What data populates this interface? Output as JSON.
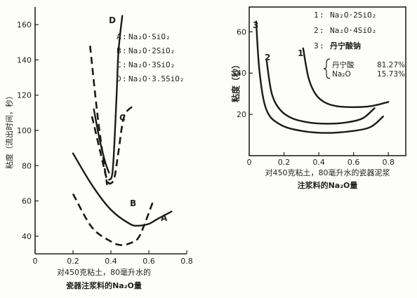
{
  "chart_data": [
    {
      "type": "line",
      "title": "",
      "xlabel_line1": "对450克粘土，80毫升水的",
      "xlabel_line2": "瓷器注浆料的Na₂O量",
      "ylabel": "粘度（流出时间，秒）",
      "xlim": [
        0,
        0.8
      ],
      "ylim": [
        30,
        170
      ],
      "xticks": [
        0,
        0.2,
        0.4,
        0.6,
        0.8
      ],
      "xtick_labels": [
        "0",
        "0.2",
        "0.4",
        "0.6",
        "0.8"
      ],
      "yticks": [
        40,
        60,
        80,
        100,
        120,
        140,
        160
      ],
      "ytick_labels": [
        "40",
        "60",
        "80",
        "100",
        "120",
        "140",
        "160"
      ],
      "legend": [
        {
          "key": "A",
          "text": "Na₂O·SiO₂"
        },
        {
          "key": "B",
          "text": "Na₂O·2SiO₂"
        },
        {
          "key": "C",
          "text": "Na₂O·3SiO₂"
        },
        {
          "key": "D",
          "text": "Na₂O·3.5SiO₂"
        }
      ],
      "series": [
        {
          "name": "A",
          "style": "solid",
          "x": [
            0.2,
            0.3,
            0.4,
            0.5,
            0.55,
            0.6,
            0.65,
            0.72
          ],
          "y": [
            87,
            69,
            55,
            47,
            46,
            47,
            50,
            54
          ]
        },
        {
          "name": "B",
          "style": "dashed",
          "x": [
            0.2,
            0.3,
            0.4,
            0.45,
            0.5,
            0.55,
            0.62
          ],
          "y": [
            64,
            45,
            37,
            35,
            36,
            40,
            59
          ]
        },
        {
          "name": "C",
          "style": "dashed",
          "x": [
            0.3,
            0.35,
            0.38,
            0.4,
            0.42,
            0.44,
            0.47,
            0.52
          ],
          "y": [
            108,
            85,
            72,
            70,
            74,
            88,
            108,
            114
          ]
        },
        {
          "name": "C",
          "style": "solid",
          "x": [
            0.31,
            0.34,
            0.37,
            0.39
          ],
          "y": [
            112,
            95,
            82,
            76
          ]
        },
        {
          "name": "D",
          "style": "dashed",
          "x": [
            0.29,
            0.33,
            0.36,
            0.38
          ],
          "y": [
            148,
            108,
            84,
            69
          ]
        },
        {
          "name": "D",
          "style": "solid",
          "x": [
            0.39,
            0.41,
            0.43,
            0.44,
            0.46
          ],
          "y": [
            72,
            78,
            120,
            145,
            165
          ]
        }
      ]
    },
    {
      "type": "line",
      "title": "",
      "xlabel_line1": "对450克粘土，80毫升水的瓷器泥浆",
      "xlabel_line2": "注浆料的Na₂O量",
      "ylabel": "粘度（秒）",
      "xlim": [
        0,
        0.9
      ],
      "ylim": [
        0,
        72
      ],
      "xticks": [
        0,
        0.2,
        0.4,
        0.6,
        0.8
      ],
      "xtick_labels": [
        "0",
        "0.2",
        "0.4",
        "0.6",
        "0.8"
      ],
      "yticks": [
        20,
        40,
        60
      ],
      "ytick_labels": [
        "20",
        "40",
        "60"
      ],
      "legend": [
        {
          "key": "1",
          "text": "Na₂O·2SiO₂"
        },
        {
          "key": "2",
          "text": "Na₂O·4SiO₂"
        },
        {
          "key": "3",
          "text": "丹宁酸钠"
        }
      ],
      "composition": [
        {
          "name": "丹宁酸",
          "value": "81.27%"
        },
        {
          "name": "Na₂O",
          "value": "15.73%"
        }
      ],
      "series": [
        {
          "name": "1",
          "x": [
            0.31,
            0.34,
            0.38,
            0.43,
            0.5,
            0.6,
            0.7,
            0.8
          ],
          "y": [
            52,
            38,
            30,
            26,
            24,
            23.5,
            24,
            26
          ]
        },
        {
          "name": "2",
          "x": [
            0.1,
            0.13,
            0.18,
            0.25,
            0.35,
            0.45,
            0.55,
            0.65,
            0.72
          ],
          "y": [
            46,
            30,
            22,
            18,
            16,
            15.5,
            16,
            18,
            23
          ]
        },
        {
          "name": "3",
          "x": [
            0.04,
            0.06,
            0.1,
            0.18,
            0.3,
            0.45,
            0.6,
            0.7,
            0.77
          ],
          "y": [
            65,
            40,
            22,
            15,
            12,
            11,
            12,
            14,
            19
          ]
        }
      ]
    }
  ]
}
